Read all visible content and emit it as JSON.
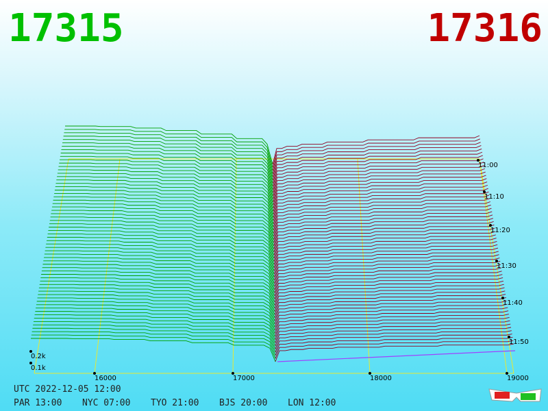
{
  "header": {
    "left_price": "17315",
    "right_price": "17316"
  },
  "price_axis": [
    "16000",
    "17000",
    "18000",
    "19000"
  ],
  "time_axis": [
    "11:00",
    "11:10",
    "11:20",
    "11:30",
    "11:40",
    "11:50"
  ],
  "depth_axis": [
    "0.2k",
    "0.1k"
  ],
  "footer": {
    "utc": "UTC 2022-12-05 12:00",
    "clocks": [
      "PAR 13:00",
      "NYC 07:00",
      "TYO 21:00",
      "BJS 20:00",
      "LON 12:00"
    ]
  }
}
